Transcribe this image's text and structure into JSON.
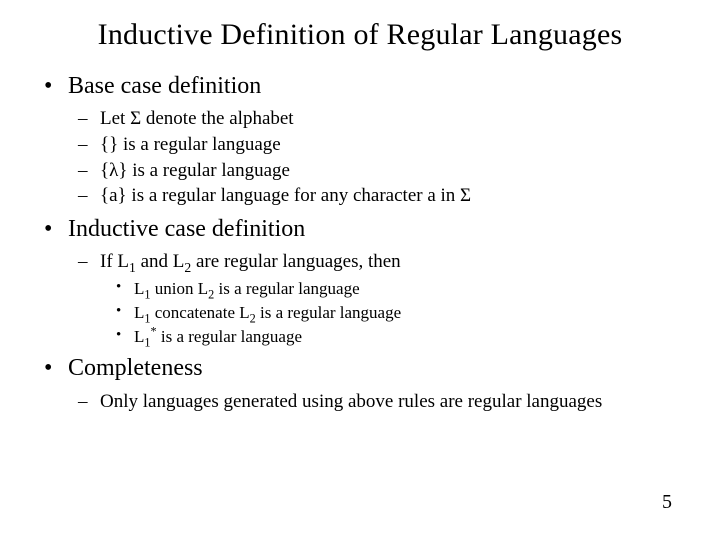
{
  "title": "Inductive Definition of Regular Languages",
  "pageNumber": "5",
  "sections": {
    "baseCase": {
      "heading": "Base case definition",
      "items": [
        "Let Σ denote the alphabet",
        "{} is a regular language",
        "{λ} is a regular language",
        "{a} is a regular language for any character a in Σ"
      ]
    },
    "inductiveCase": {
      "heading": "Inductive case definition",
      "leadPrefix": "If L",
      "leadMid": " and L",
      "leadSuffix": " are regular languages, then",
      "sub1": "1",
      "sub2": "2",
      "items": {
        "union": {
          "pre": "L",
          "s1": "1",
          "mid": " union L",
          "s2": "2",
          "post": " is a regular language"
        },
        "concat": {
          "pre": "L",
          "s1": "1",
          "mid": " concatenate L",
          "s2": "2",
          "post": " is a regular language"
        },
        "star": {
          "pre": "L",
          "s1": "1",
          "sup": "*",
          "post": " is a regular language"
        }
      }
    },
    "completeness": {
      "heading": "Completeness",
      "items": [
        "Only languages generated using above rules are regular languages"
      ]
    }
  }
}
